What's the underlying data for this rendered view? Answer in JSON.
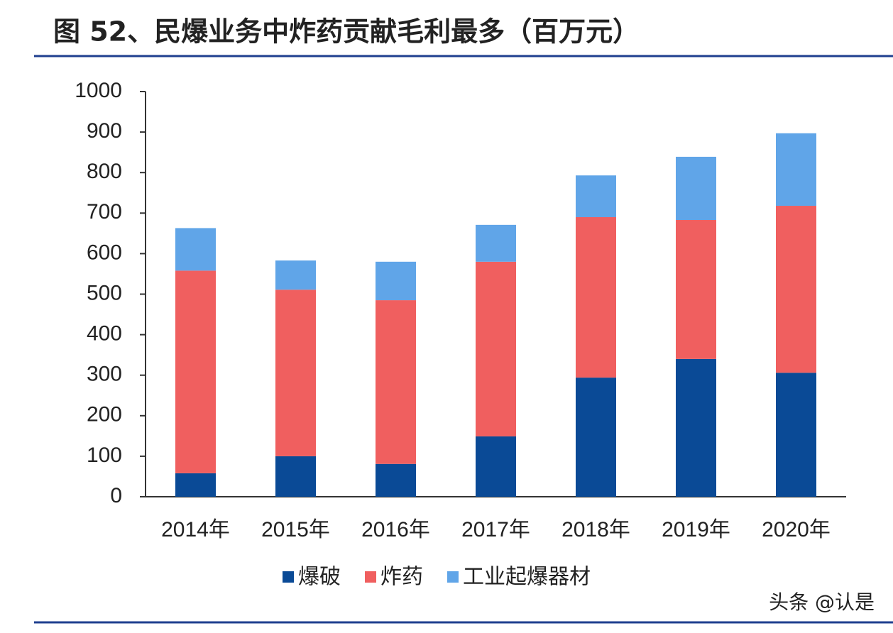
{
  "chart_data": {
    "type": "stacked_bar",
    "title": "图 52、民爆业务中炸药贡献毛利最多（百万元）",
    "categories": [
      "2014年",
      "2015年",
      "2016年",
      "2017年",
      "2018年",
      "2019年",
      "2020年"
    ],
    "series": [
      {
        "name": "爆破",
        "color": "#0a4a96",
        "values": [
          58,
          100,
          81,
          149,
          294,
          340,
          306
        ]
      },
      {
        "name": "炸药",
        "color": "#f05f5f",
        "values": [
          500,
          411,
          404,
          431,
          396,
          343,
          412
        ]
      },
      {
        "name": "工业起爆器材",
        "color": "#60a5e8",
        "values": [
          105,
          72,
          95,
          91,
          103,
          156,
          179
        ]
      }
    ],
    "ylim": [
      0,
      1000
    ],
    "yticks": [
      0,
      100,
      200,
      300,
      400,
      500,
      600,
      700,
      800,
      900,
      1000
    ],
    "legend": "bottom",
    "watermark": "头条 @认是"
  }
}
